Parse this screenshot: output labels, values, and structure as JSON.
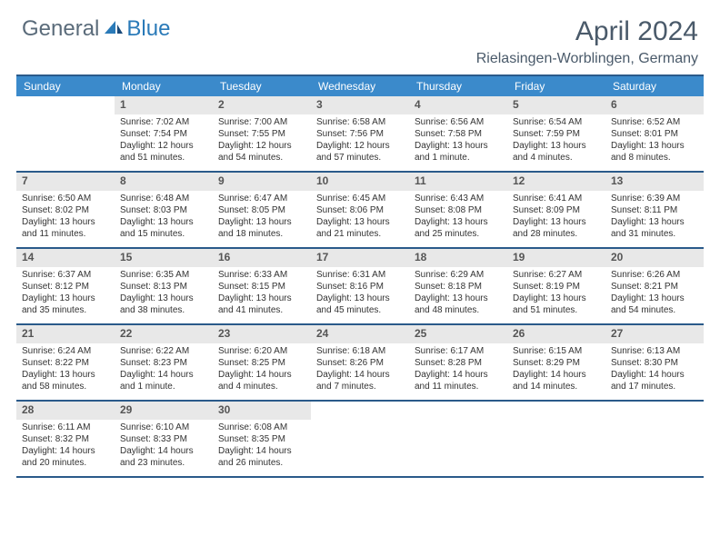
{
  "logo": {
    "text1": "General",
    "text2": "Blue"
  },
  "title": "April 2024",
  "location": "Rielasingen-Worblingen, Germany",
  "day_headers": [
    "Sunday",
    "Monday",
    "Tuesday",
    "Wednesday",
    "Thursday",
    "Friday",
    "Saturday"
  ],
  "colors": {
    "header_bg": "#3b8acb",
    "border": "#2a5a8a",
    "daynum_bg": "#e8e8e8",
    "logo_gray": "#5a6b7a",
    "logo_blue": "#2a7ab8",
    "title_color": "#4a5a6a"
  },
  "weeks": [
    [
      {
        "empty": true
      },
      {
        "num": "1",
        "sunrise": "Sunrise: 7:02 AM",
        "sunset": "Sunset: 7:54 PM",
        "daylight": "Daylight: 12 hours and 51 minutes."
      },
      {
        "num": "2",
        "sunrise": "Sunrise: 7:00 AM",
        "sunset": "Sunset: 7:55 PM",
        "daylight": "Daylight: 12 hours and 54 minutes."
      },
      {
        "num": "3",
        "sunrise": "Sunrise: 6:58 AM",
        "sunset": "Sunset: 7:56 PM",
        "daylight": "Daylight: 12 hours and 57 minutes."
      },
      {
        "num": "4",
        "sunrise": "Sunrise: 6:56 AM",
        "sunset": "Sunset: 7:58 PM",
        "daylight": "Daylight: 13 hours and 1 minute."
      },
      {
        "num": "5",
        "sunrise": "Sunrise: 6:54 AM",
        "sunset": "Sunset: 7:59 PM",
        "daylight": "Daylight: 13 hours and 4 minutes."
      },
      {
        "num": "6",
        "sunrise": "Sunrise: 6:52 AM",
        "sunset": "Sunset: 8:01 PM",
        "daylight": "Daylight: 13 hours and 8 minutes."
      }
    ],
    [
      {
        "num": "7",
        "sunrise": "Sunrise: 6:50 AM",
        "sunset": "Sunset: 8:02 PM",
        "daylight": "Daylight: 13 hours and 11 minutes."
      },
      {
        "num": "8",
        "sunrise": "Sunrise: 6:48 AM",
        "sunset": "Sunset: 8:03 PM",
        "daylight": "Daylight: 13 hours and 15 minutes."
      },
      {
        "num": "9",
        "sunrise": "Sunrise: 6:47 AM",
        "sunset": "Sunset: 8:05 PM",
        "daylight": "Daylight: 13 hours and 18 minutes."
      },
      {
        "num": "10",
        "sunrise": "Sunrise: 6:45 AM",
        "sunset": "Sunset: 8:06 PM",
        "daylight": "Daylight: 13 hours and 21 minutes."
      },
      {
        "num": "11",
        "sunrise": "Sunrise: 6:43 AM",
        "sunset": "Sunset: 8:08 PM",
        "daylight": "Daylight: 13 hours and 25 minutes."
      },
      {
        "num": "12",
        "sunrise": "Sunrise: 6:41 AM",
        "sunset": "Sunset: 8:09 PM",
        "daylight": "Daylight: 13 hours and 28 minutes."
      },
      {
        "num": "13",
        "sunrise": "Sunrise: 6:39 AM",
        "sunset": "Sunset: 8:11 PM",
        "daylight": "Daylight: 13 hours and 31 minutes."
      }
    ],
    [
      {
        "num": "14",
        "sunrise": "Sunrise: 6:37 AM",
        "sunset": "Sunset: 8:12 PM",
        "daylight": "Daylight: 13 hours and 35 minutes."
      },
      {
        "num": "15",
        "sunrise": "Sunrise: 6:35 AM",
        "sunset": "Sunset: 8:13 PM",
        "daylight": "Daylight: 13 hours and 38 minutes."
      },
      {
        "num": "16",
        "sunrise": "Sunrise: 6:33 AM",
        "sunset": "Sunset: 8:15 PM",
        "daylight": "Daylight: 13 hours and 41 minutes."
      },
      {
        "num": "17",
        "sunrise": "Sunrise: 6:31 AM",
        "sunset": "Sunset: 8:16 PM",
        "daylight": "Daylight: 13 hours and 45 minutes."
      },
      {
        "num": "18",
        "sunrise": "Sunrise: 6:29 AM",
        "sunset": "Sunset: 8:18 PM",
        "daylight": "Daylight: 13 hours and 48 minutes."
      },
      {
        "num": "19",
        "sunrise": "Sunrise: 6:27 AM",
        "sunset": "Sunset: 8:19 PM",
        "daylight": "Daylight: 13 hours and 51 minutes."
      },
      {
        "num": "20",
        "sunrise": "Sunrise: 6:26 AM",
        "sunset": "Sunset: 8:21 PM",
        "daylight": "Daylight: 13 hours and 54 minutes."
      }
    ],
    [
      {
        "num": "21",
        "sunrise": "Sunrise: 6:24 AM",
        "sunset": "Sunset: 8:22 PM",
        "daylight": "Daylight: 13 hours and 58 minutes."
      },
      {
        "num": "22",
        "sunrise": "Sunrise: 6:22 AM",
        "sunset": "Sunset: 8:23 PM",
        "daylight": "Daylight: 14 hours and 1 minute."
      },
      {
        "num": "23",
        "sunrise": "Sunrise: 6:20 AM",
        "sunset": "Sunset: 8:25 PM",
        "daylight": "Daylight: 14 hours and 4 minutes."
      },
      {
        "num": "24",
        "sunrise": "Sunrise: 6:18 AM",
        "sunset": "Sunset: 8:26 PM",
        "daylight": "Daylight: 14 hours and 7 minutes."
      },
      {
        "num": "25",
        "sunrise": "Sunrise: 6:17 AM",
        "sunset": "Sunset: 8:28 PM",
        "daylight": "Daylight: 14 hours and 11 minutes."
      },
      {
        "num": "26",
        "sunrise": "Sunrise: 6:15 AM",
        "sunset": "Sunset: 8:29 PM",
        "daylight": "Daylight: 14 hours and 14 minutes."
      },
      {
        "num": "27",
        "sunrise": "Sunrise: 6:13 AM",
        "sunset": "Sunset: 8:30 PM",
        "daylight": "Daylight: 14 hours and 17 minutes."
      }
    ],
    [
      {
        "num": "28",
        "sunrise": "Sunrise: 6:11 AM",
        "sunset": "Sunset: 8:32 PM",
        "daylight": "Daylight: 14 hours and 20 minutes."
      },
      {
        "num": "29",
        "sunrise": "Sunrise: 6:10 AM",
        "sunset": "Sunset: 8:33 PM",
        "daylight": "Daylight: 14 hours and 23 minutes."
      },
      {
        "num": "30",
        "sunrise": "Sunrise: 6:08 AM",
        "sunset": "Sunset: 8:35 PM",
        "daylight": "Daylight: 14 hours and 26 minutes."
      },
      {
        "empty": true
      },
      {
        "empty": true
      },
      {
        "empty": true
      },
      {
        "empty": true
      }
    ]
  ]
}
